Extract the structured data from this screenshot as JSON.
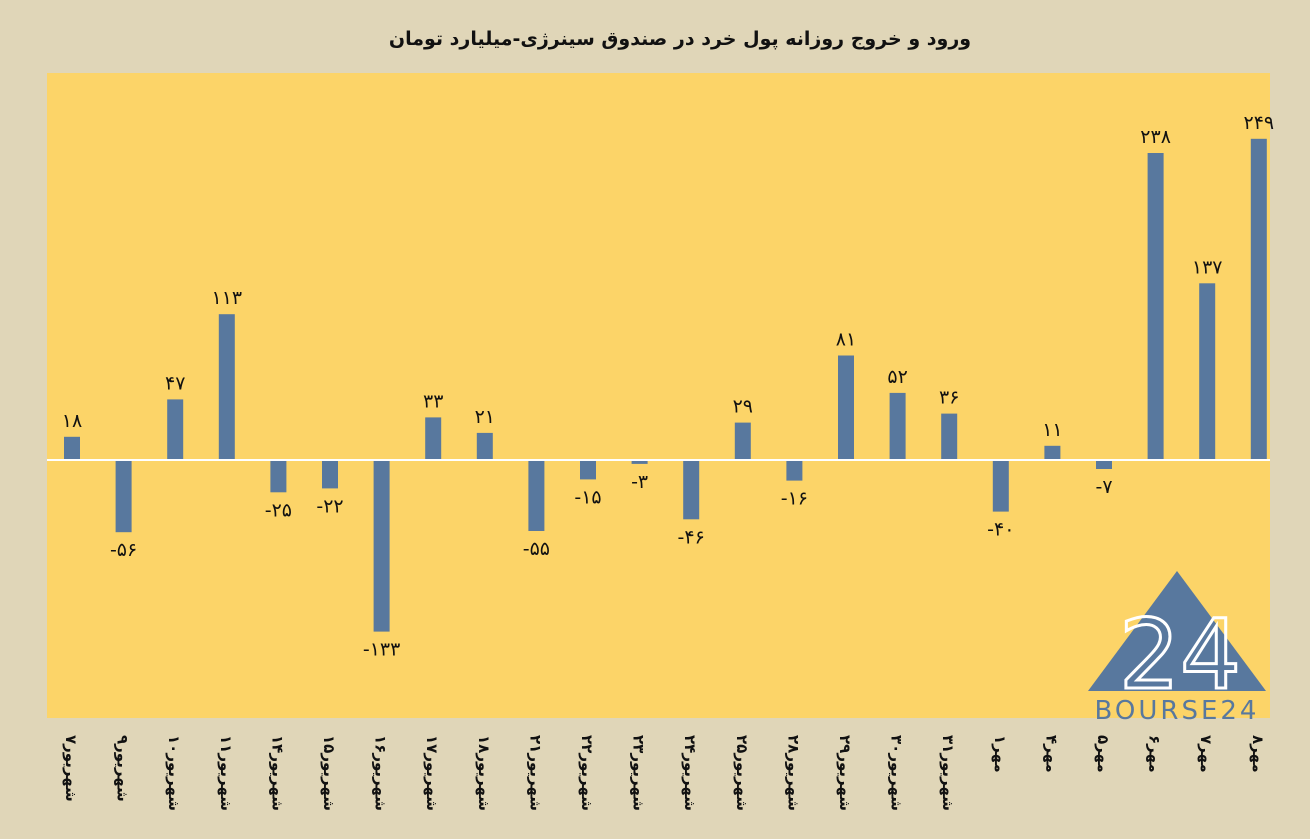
{
  "chart_data": {
    "type": "bar",
    "title": "ورود و خروج روزانه پول خرد در صندوق سینرژی-میلیارد تومان",
    "categories": [
      "۷شهریور",
      "۹شهریور",
      "۱۰شهریور",
      "۱۱شهریور",
      "۱۴شهریور",
      "۱۵شهریور",
      "۱۶شهریور",
      "۱۷شهریور",
      "۱۸شهریور",
      "۲۱شهریور",
      "۲۲شهریور",
      "۲۳شهریور",
      "۲۴شهریور",
      "۲۵شهریور",
      "۲۸شهریور",
      "۲۹شهریور",
      "۳۰شهریور",
      "۳۱شهریور",
      "۱مهر",
      "۴مهر",
      "۵مهر",
      "۶مهر",
      "۷مهر",
      "۸مهر"
    ],
    "values": [
      18,
      -56,
      47,
      113,
      -25,
      -22,
      -133,
      33,
      21,
      -55,
      -15,
      -3,
      -46,
      29,
      -16,
      81,
      52,
      36,
      -40,
      11,
      -7,
      238,
      137,
      249
    ],
    "data_labels": [
      "۱۸",
      "-۵۶",
      "۴۷",
      "۱۱۳",
      "-۲۵",
      "-۲۲",
      "-۱۳۳",
      "۳۳",
      "۲۱",
      "-۵۵",
      "-۱۵",
      "-۳",
      "-۴۶",
      "۲۹",
      "-۱۶",
      "۸۱",
      "۵۲",
      "۳۶",
      "-۴۰",
      "۱۱",
      "-۷",
      "۲۳۸",
      "۱۳۷",
      "۲۴۹"
    ],
    "ylim": [
      -200,
      300
    ],
    "grid": false,
    "colors": {
      "page_background": "#e0d6b8",
      "plot_background": "#fcd468",
      "bar": "#58789e",
      "zero_line": "#ffffff",
      "text": "#111111",
      "logo": "#58789e"
    }
  },
  "logo": {
    "numerals": "24",
    "wordmark": "BOURSE24"
  }
}
